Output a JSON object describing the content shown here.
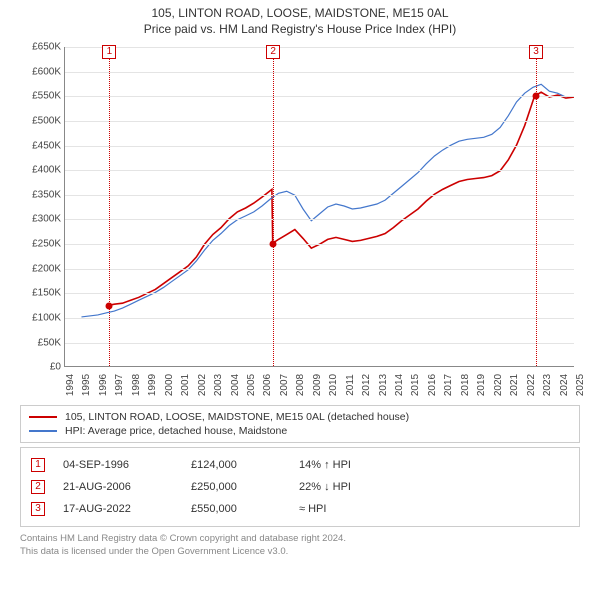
{
  "title": "105, LINTON ROAD, LOOSE, MAIDSTONE, ME15 0AL",
  "subtitle": "Price paid vs. HM Land Registry's House Price Index (HPI)",
  "chart": {
    "type": "line",
    "ylim": [
      0,
      650000
    ],
    "ytick_step": 50000,
    "yticks": [
      "£0",
      "£50K",
      "£100K",
      "£150K",
      "£200K",
      "£250K",
      "£300K",
      "£350K",
      "£400K",
      "£450K",
      "£500K",
      "£550K",
      "£600K",
      "£650K"
    ],
    "x_years": [
      1994,
      1995,
      1996,
      1997,
      1998,
      1999,
      2000,
      2001,
      2002,
      2003,
      2004,
      2005,
      2006,
      2007,
      2008,
      2009,
      2010,
      2011,
      2012,
      2013,
      2014,
      2015,
      2016,
      2017,
      2018,
      2019,
      2020,
      2021,
      2022,
      2023,
      2024,
      2025
    ],
    "background_color": "#ffffff",
    "grid_color": "#e4e4e4",
    "series": [
      {
        "id": "property",
        "label": "105, LINTON ROAD, LOOSE, MAIDSTONE, ME15 0AL (detached house)",
        "color": "#cc0000",
        "width": 1.6,
        "data": [
          [
            1996.7,
            124
          ],
          [
            1997,
            126
          ],
          [
            1997.5,
            128
          ],
          [
            1998,
            134
          ],
          [
            1998.5,
            140
          ],
          [
            1999,
            148
          ],
          [
            1999.5,
            156
          ],
          [
            2000,
            168
          ],
          [
            2000.5,
            180
          ],
          [
            2001,
            192
          ],
          [
            2001.5,
            204
          ],
          [
            2002,
            222
          ],
          [
            2002.5,
            248
          ],
          [
            2003,
            268
          ],
          [
            2003.5,
            282
          ],
          [
            2004,
            300
          ],
          [
            2004.5,
            314
          ],
          [
            2005,
            322
          ],
          [
            2005.5,
            332
          ],
          [
            2006,
            344
          ],
          [
            2006.6,
            360
          ],
          [
            2006.65,
            250
          ],
          [
            2007,
            258
          ],
          [
            2007.5,
            268
          ],
          [
            2008,
            278
          ],
          [
            2008.5,
            260
          ],
          [
            2009,
            240
          ],
          [
            2009.5,
            248
          ],
          [
            2010,
            258
          ],
          [
            2010.5,
            262
          ],
          [
            2011,
            258
          ],
          [
            2011.5,
            254
          ],
          [
            2012,
            256
          ],
          [
            2012.5,
            260
          ],
          [
            2013,
            264
          ],
          [
            2013.5,
            270
          ],
          [
            2014,
            282
          ],
          [
            2014.5,
            296
          ],
          [
            2015,
            308
          ],
          [
            2015.5,
            320
          ],
          [
            2016,
            336
          ],
          [
            2016.5,
            350
          ],
          [
            2017,
            360
          ],
          [
            2017.5,
            368
          ],
          [
            2018,
            376
          ],
          [
            2018.5,
            380
          ],
          [
            2019,
            382
          ],
          [
            2019.5,
            384
          ],
          [
            2020,
            388
          ],
          [
            2020.5,
            398
          ],
          [
            2021,
            420
          ],
          [
            2021.5,
            450
          ],
          [
            2022,
            490
          ],
          [
            2022.6,
            550
          ],
          [
            2023,
            558
          ],
          [
            2023.5,
            548
          ],
          [
            2024,
            552
          ],
          [
            2024.5,
            546
          ],
          [
            2025,
            548
          ]
        ]
      },
      {
        "id": "hpi",
        "label": "HPI: Average price, detached house, Maidstone",
        "color": "#4477cc",
        "width": 1.2,
        "data": [
          [
            1995,
            100
          ],
          [
            1995.5,
            102
          ],
          [
            1996,
            104
          ],
          [
            1996.5,
            108
          ],
          [
            1997,
            112
          ],
          [
            1997.5,
            118
          ],
          [
            1998,
            126
          ],
          [
            1998.5,
            134
          ],
          [
            1999,
            142
          ],
          [
            1999.5,
            150
          ],
          [
            2000,
            160
          ],
          [
            2000.5,
            172
          ],
          [
            2001,
            184
          ],
          [
            2001.5,
            196
          ],
          [
            2002,
            214
          ],
          [
            2002.5,
            236
          ],
          [
            2003,
            256
          ],
          [
            2003.5,
            270
          ],
          [
            2004,
            286
          ],
          [
            2004.5,
            298
          ],
          [
            2005,
            306
          ],
          [
            2005.5,
            314
          ],
          [
            2006,
            326
          ],
          [
            2006.5,
            340
          ],
          [
            2007,
            352
          ],
          [
            2007.5,
            356
          ],
          [
            2008,
            348
          ],
          [
            2008.5,
            320
          ],
          [
            2009,
            296
          ],
          [
            2009.5,
            310
          ],
          [
            2010,
            324
          ],
          [
            2010.5,
            330
          ],
          [
            2011,
            326
          ],
          [
            2011.5,
            320
          ],
          [
            2012,
            322
          ],
          [
            2012.5,
            326
          ],
          [
            2013,
            330
          ],
          [
            2013.5,
            338
          ],
          [
            2014,
            352
          ],
          [
            2014.5,
            366
          ],
          [
            2015,
            380
          ],
          [
            2015.5,
            394
          ],
          [
            2016,
            412
          ],
          [
            2016.5,
            428
          ],
          [
            2017,
            440
          ],
          [
            2017.5,
            450
          ],
          [
            2018,
            458
          ],
          [
            2018.5,
            462
          ],
          [
            2019,
            464
          ],
          [
            2019.5,
            466
          ],
          [
            2020,
            472
          ],
          [
            2020.5,
            486
          ],
          [
            2021,
            510
          ],
          [
            2021.5,
            538
          ],
          [
            2022,
            556
          ],
          [
            2022.5,
            568
          ],
          [
            2023,
            574
          ],
          [
            2023.5,
            560
          ],
          [
            2024,
            556
          ],
          [
            2024.5,
            548
          ]
        ]
      }
    ],
    "markers": [
      {
        "n": "1",
        "year": 1996.7,
        "value": 124,
        "line_color": "#cc0000"
      },
      {
        "n": "2",
        "year": 2006.65,
        "value": 250,
        "line_color": "#cc0000"
      },
      {
        "n": "3",
        "year": 2022.63,
        "value": 550,
        "line_color": "#cc0000"
      }
    ]
  },
  "legend": [
    {
      "color": "#cc0000",
      "label": "105, LINTON ROAD, LOOSE, MAIDSTONE, ME15 0AL (detached house)"
    },
    {
      "color": "#4477cc",
      "label": "HPI: Average price, detached house, Maidstone"
    }
  ],
  "transactions": [
    {
      "n": "1",
      "date": "04-SEP-1996",
      "price": "£124,000",
      "pct": "14% ↑ HPI"
    },
    {
      "n": "2",
      "date": "21-AUG-2006",
      "price": "£250,000",
      "pct": "22% ↓ HPI"
    },
    {
      "n": "3",
      "date": "17-AUG-2022",
      "price": "£550,000",
      "pct": "≈ HPI"
    }
  ],
  "footer_line1": "Contains HM Land Registry data © Crown copyright and database right 2024.",
  "footer_line2": "This data is licensed under the Open Government Licence v3.0."
}
